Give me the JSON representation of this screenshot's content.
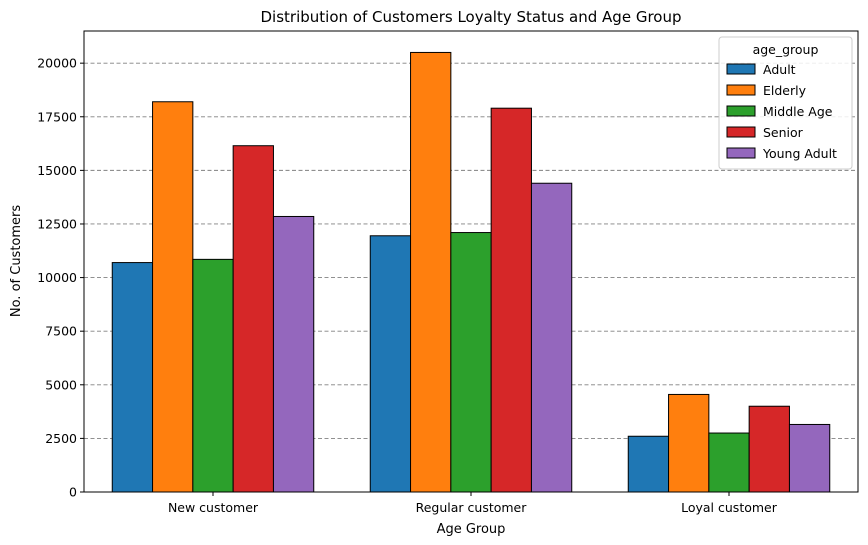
{
  "chart_data": {
    "type": "bar",
    "title": "Distribution of Customers Loyalty Status and Age Group",
    "xlabel": "Age Group",
    "ylabel": "No. of Customers",
    "categories": [
      "New customer",
      "Regular customer",
      "Loyal customer"
    ],
    "ylim": [
      0,
      21500
    ],
    "yticks": [
      0,
      2500,
      5000,
      7500,
      10000,
      12500,
      15000,
      17500,
      20000
    ],
    "grid": true,
    "legend": {
      "title": "age_group",
      "placement": "top-right"
    },
    "series": [
      {
        "name": "Adult",
        "color": "#1f77b4",
        "values": [
          10700,
          11950,
          2600
        ]
      },
      {
        "name": "Elderly",
        "color": "#ff7f0e",
        "values": [
          18200,
          20500,
          4550
        ]
      },
      {
        "name": "Middle Age",
        "color": "#2ca02c",
        "values": [
          10850,
          12100,
          2750
        ]
      },
      {
        "name": "Senior",
        "color": "#d62728",
        "values": [
          16150,
          17900,
          4000
        ]
      },
      {
        "name": "Young Adult",
        "color": "#9467bd",
        "values": [
          12850,
          14400,
          3150
        ]
      }
    ]
  }
}
